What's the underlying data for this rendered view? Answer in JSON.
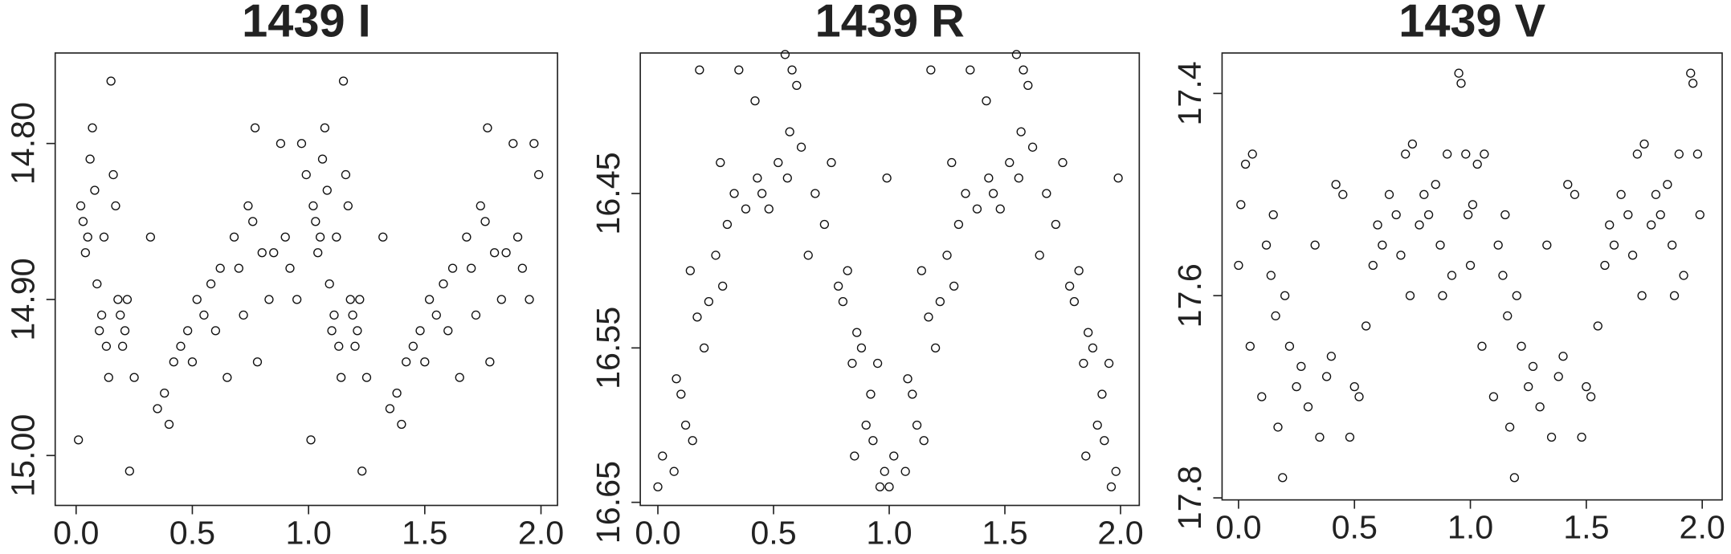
{
  "chart_data": [
    {
      "type": "scatter",
      "title": "1439 I",
      "x": [
        0.01,
        0.02,
        0.03,
        0.04,
        0.05,
        0.06,
        0.07,
        0.08,
        0.09,
        0.1,
        0.11,
        0.12,
        0.13,
        0.14,
        0.15,
        0.16,
        0.17,
        0.18,
        0.19,
        0.2,
        0.21,
        0.22,
        0.23,
        0.25,
        0.32,
        0.35,
        0.38,
        0.4,
        0.42,
        0.45,
        0.48,
        0.5,
        0.52,
        0.55,
        0.58,
        0.6,
        0.62,
        0.65,
        0.68,
        0.7,
        0.72,
        0.74,
        0.76,
        0.77,
        0.78,
        0.8,
        0.83,
        0.85,
        0.88,
        0.9,
        0.92,
        0.95,
        0.97,
        0.99,
        1.01,
        1.02,
        1.03,
        1.04,
        1.05,
        1.06,
        1.07,
        1.08,
        1.09,
        1.1,
        1.11,
        1.12,
        1.13,
        1.14,
        1.15,
        1.16,
        1.17,
        1.18,
        1.19,
        1.2,
        1.21,
        1.22,
        1.23,
        1.25,
        1.32,
        1.35,
        1.38,
        1.4,
        1.42,
        1.45,
        1.48,
        1.5,
        1.52,
        1.55,
        1.58,
        1.6,
        1.62,
        1.65,
        1.68,
        1.7,
        1.72,
        1.74,
        1.76,
        1.77,
        1.78,
        1.8,
        1.83,
        1.85,
        1.88,
        1.9,
        1.92,
        1.95,
        1.97,
        1.99
      ],
      "values": [
        14.99,
        14.84,
        14.85,
        14.87,
        14.86,
        14.81,
        14.79,
        14.83,
        14.89,
        14.92,
        14.91,
        14.86,
        14.93,
        14.95,
        14.76,
        14.82,
        14.84,
        14.9,
        14.91,
        14.93,
        14.92,
        14.9,
        15.01,
        14.95,
        14.86,
        14.97,
        14.96,
        14.98,
        14.94,
        14.93,
        14.92,
        14.94,
        14.9,
        14.91,
        14.89,
        14.92,
        14.88,
        14.95,
        14.86,
        14.88,
        14.91,
        14.84,
        14.85,
        14.79,
        14.94,
        14.87,
        14.9,
        14.87,
        14.8,
        14.86,
        14.88,
        14.9,
        14.8,
        14.82,
        14.99,
        14.84,
        14.85,
        14.87,
        14.86,
        14.81,
        14.79,
        14.83,
        14.89,
        14.92,
        14.91,
        14.86,
        14.93,
        14.95,
        14.76,
        14.82,
        14.84,
        14.9,
        14.91,
        14.93,
        14.92,
        14.9,
        15.01,
        14.95,
        14.86,
        14.97,
        14.96,
        14.98,
        14.94,
        14.93,
        14.92,
        14.94,
        14.9,
        14.91,
        14.89,
        14.92,
        14.88,
        14.95,
        14.86,
        14.88,
        14.91,
        14.84,
        14.85,
        14.79,
        14.94,
        14.87,
        14.9,
        14.87,
        14.8,
        14.86,
        14.88,
        14.9,
        14.8,
        14.82
      ],
      "xlim": [
        -0.09,
        2.071
      ],
      "ylim": [
        15.032,
        14.742
      ],
      "xticks": [
        {
          "value": 0,
          "label": "0.0"
        },
        0.5,
        {
          "value": 1,
          "label": "1.0"
        },
        1.5,
        {
          "value": 2,
          "label": "2.0"
        }
      ],
      "yticks": [
        {
          "value": 14.8,
          "label": "14.80"
        },
        {
          "value": 14.9,
          "label": "14.90"
        },
        {
          "value": 15,
          "label": "15.00"
        }
      ]
    },
    {
      "type": "scatter",
      "title": "1439 R",
      "x": [
        0.0,
        0.02,
        0.07,
        0.08,
        0.1,
        0.12,
        0.14,
        0.15,
        0.17,
        0.18,
        0.2,
        0.22,
        0.25,
        0.27,
        0.28,
        0.3,
        0.33,
        0.35,
        0.38,
        0.42,
        0.43,
        0.45,
        0.48,
        0.52,
        0.55,
        0.56,
        0.57,
        0.58,
        0.6,
        0.62,
        0.65,
        0.68,
        0.72,
        0.75,
        0.78,
        0.8,
        0.82,
        0.84,
        0.85,
        0.86,
        0.88,
        0.9,
        0.92,
        0.93,
        0.95,
        0.96,
        0.98,
        0.99,
        1.0,
        1.02,
        1.07,
        1.08,
        1.1,
        1.12,
        1.14,
        1.15,
        1.17,
        1.18,
        1.2,
        1.22,
        1.25,
        1.27,
        1.28,
        1.3,
        1.33,
        1.35,
        1.38,
        1.42,
        1.43,
        1.45,
        1.48,
        1.52,
        1.55,
        1.56,
        1.57,
        1.58,
        1.6,
        1.62,
        1.65,
        1.68,
        1.72,
        1.75,
        1.78,
        1.8,
        1.82,
        1.84,
        1.85,
        1.86,
        1.88,
        1.9,
        1.92,
        1.93,
        1.95,
        1.96,
        1.98,
        1.99
      ],
      "values": [
        16.64,
        16.62,
        16.63,
        16.57,
        16.58,
        16.6,
        16.5,
        16.61,
        16.53,
        16.37,
        16.55,
        16.52,
        16.49,
        16.43,
        16.51,
        16.47,
        16.45,
        16.37,
        16.46,
        16.39,
        16.44,
        16.45,
        16.46,
        16.43,
        16.36,
        16.44,
        16.41,
        16.37,
        16.38,
        16.42,
        16.49,
        16.45,
        16.47,
        16.43,
        16.51,
        16.52,
        16.5,
        16.56,
        16.62,
        16.54,
        16.55,
        16.6,
        16.58,
        16.61,
        16.56,
        16.64,
        16.63,
        16.44,
        16.64,
        16.62,
        16.63,
        16.57,
        16.58,
        16.6,
        16.5,
        16.61,
        16.53,
        16.37,
        16.55,
        16.52,
        16.49,
        16.43,
        16.51,
        16.47,
        16.45,
        16.37,
        16.46,
        16.39,
        16.44,
        16.45,
        16.46,
        16.43,
        16.36,
        16.44,
        16.41,
        16.37,
        16.38,
        16.42,
        16.49,
        16.45,
        16.47,
        16.43,
        16.51,
        16.52,
        16.5,
        16.56,
        16.62,
        16.54,
        16.55,
        16.6,
        16.58,
        16.61,
        16.56,
        16.64,
        16.63,
        16.44
      ],
      "xlim": [
        -0.076,
        2.081
      ],
      "ylim": [
        16.652,
        16.359
      ],
      "xticks": [
        {
          "value": 0,
          "label": "0.0"
        },
        0.5,
        {
          "value": 1,
          "label": "1.0"
        },
        1.5,
        {
          "value": 2,
          "label": "2.0"
        }
      ],
      "yticks": [
        16.45,
        16.55,
        16.65
      ]
    },
    {
      "type": "scatter",
      "title": "1439 V",
      "x": [
        0.0,
        0.01,
        0.03,
        0.05,
        0.06,
        0.1,
        0.12,
        0.14,
        0.15,
        0.16,
        0.17,
        0.19,
        0.2,
        0.22,
        0.25,
        0.27,
        0.3,
        0.33,
        0.35,
        0.38,
        0.4,
        0.42,
        0.45,
        0.48,
        0.5,
        0.52,
        0.55,
        0.58,
        0.6,
        0.62,
        0.65,
        0.68,
        0.7,
        0.72,
        0.74,
        0.75,
        0.78,
        0.8,
        0.82,
        0.85,
        0.87,
        0.88,
        0.9,
        0.92,
        0.95,
        0.96,
        0.98,
        0.99,
        1.0,
        1.01,
        1.03,
        1.05,
        1.06,
        1.1,
        1.12,
        1.14,
        1.15,
        1.16,
        1.17,
        1.19,
        1.2,
        1.22,
        1.25,
        1.27,
        1.3,
        1.33,
        1.35,
        1.38,
        1.4,
        1.42,
        1.45,
        1.48,
        1.5,
        1.52,
        1.55,
        1.58,
        1.6,
        1.62,
        1.65,
        1.68,
        1.7,
        1.72,
        1.74,
        1.75,
        1.78,
        1.8,
        1.82,
        1.85,
        1.87,
        1.88,
        1.9,
        1.92,
        1.95,
        1.96,
        1.98,
        1.99
      ],
      "values": [
        17.57,
        17.51,
        17.47,
        17.65,
        17.46,
        17.7,
        17.55,
        17.58,
        17.52,
        17.62,
        17.73,
        17.78,
        17.6,
        17.65,
        17.69,
        17.67,
        17.71,
        17.55,
        17.74,
        17.68,
        17.66,
        17.49,
        17.5,
        17.74,
        17.69,
        17.7,
        17.63,
        17.57,
        17.53,
        17.55,
        17.5,
        17.52,
        17.56,
        17.46,
        17.6,
        17.45,
        17.53,
        17.5,
        17.52,
        17.49,
        17.55,
        17.6,
        17.46,
        17.58,
        17.38,
        17.39,
        17.46,
        17.52,
        17.57,
        17.51,
        17.47,
        17.65,
        17.46,
        17.7,
        17.55,
        17.58,
        17.52,
        17.62,
        17.73,
        17.78,
        17.6,
        17.65,
        17.69,
        17.67,
        17.71,
        17.55,
        17.74,
        17.68,
        17.66,
        17.49,
        17.5,
        17.74,
        17.69,
        17.7,
        17.63,
        17.57,
        17.53,
        17.55,
        17.5,
        17.52,
        17.56,
        17.46,
        17.6,
        17.45,
        17.53,
        17.5,
        17.52,
        17.49,
        17.55,
        17.6,
        17.46,
        17.58,
        17.38,
        17.39,
        17.46,
        17.52
      ],
      "xlim": [
        -0.071,
        2.086
      ],
      "ylim": [
        17.802,
        17.36
      ],
      "xticks": [
        {
          "value": 0,
          "label": "0.0"
        },
        0.5,
        {
          "value": 1,
          "label": "1.0"
        },
        1.5,
        {
          "value": 2,
          "label": "2.0"
        }
      ],
      "yticks": [
        17.4,
        17.6,
        17.8
      ]
    }
  ]
}
